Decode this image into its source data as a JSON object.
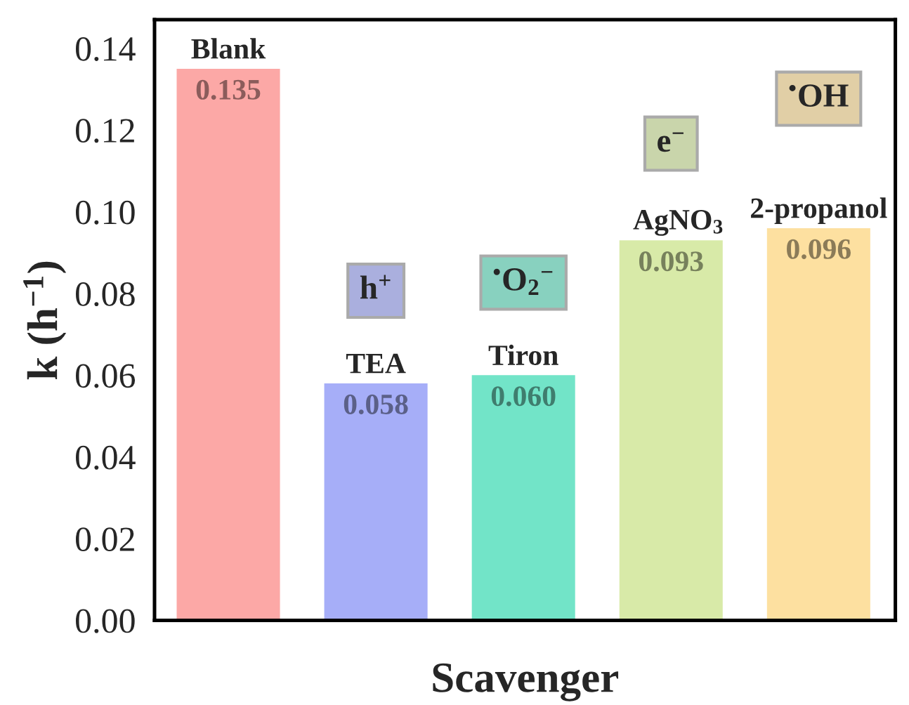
{
  "chart_data": {
    "type": "bar",
    "categories": [
      "Blank",
      "TEA",
      "Tiron",
      "AgNO$_{3}$",
      "2-propanol"
    ],
    "values": [
      0.135,
      0.058,
      0.06,
      0.093,
      0.096
    ],
    "colors": [
      "#fca8a6",
      "#a6aef8",
      "#72e4c8",
      "#d8eaa8",
      "#fde0a0"
    ],
    "value_labels": [
      "0.135",
      "0.058",
      "0.060",
      "0.093",
      "0.096"
    ],
    "xlabel": "Scavenger",
    "ylabel": "k (h$^{−1}$)",
    "ylim": [
      0,
      0.147
    ],
    "yticks": [
      {
        "value": 0,
        "label": "0.00"
      },
      0.02,
      0.04,
      0.06,
      0.08,
      {
        "value": 0.1,
        "label": "0.10"
      },
      0.12,
      0.14
    ],
    "tick_labels": "y",
    "grid": false,
    "annotations": [
      "h$^{+}$",
      "$^{•}$O$_{2}$$^{−}$",
      "e$^{−}$",
      "$^{•}$OH"
    ]
  }
}
